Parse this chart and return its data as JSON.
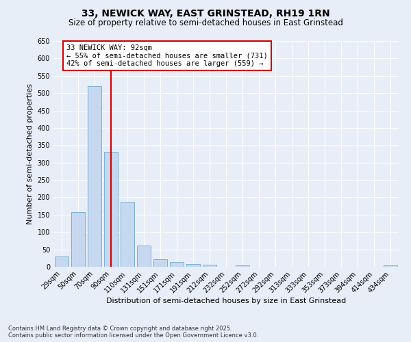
{
  "title": "33, NEWICK WAY, EAST GRINSTEAD, RH19 1RN",
  "subtitle": "Size of property relative to semi-detached houses in East Grinstead",
  "xlabel": "Distribution of semi-detached houses by size in East Grinstead",
  "ylabel": "Number of semi-detached properties",
  "categories": [
    "29sqm",
    "50sqm",
    "70sqm",
    "90sqm",
    "110sqm",
    "131sqm",
    "151sqm",
    "171sqm",
    "191sqm",
    "212sqm",
    "232sqm",
    "252sqm",
    "272sqm",
    "292sqm",
    "313sqm",
    "333sqm",
    "353sqm",
    "373sqm",
    "394sqm",
    "414sqm",
    "434sqm"
  ],
  "values": [
    30,
    158,
    520,
    330,
    187,
    62,
    22,
    13,
    8,
    5,
    0,
    4,
    0,
    0,
    0,
    0,
    0,
    0,
    0,
    0,
    4
  ],
  "bar_color": "#c5d8ef",
  "bar_edge_color": "#7aafd4",
  "vline_x_index": 3,
  "vline_color": "#cc0000",
  "annotation_line1": "33 NEWICK WAY: 92sqm",
  "annotation_line2": "← 55% of semi-detached houses are smaller (731)",
  "annotation_line3": "42% of semi-detached houses are larger (559) →",
  "annotation_box_color": "#ffffff",
  "annotation_box_edge_color": "#cc0000",
  "ylim": [
    0,
    650
  ],
  "yticks": [
    0,
    50,
    100,
    150,
    200,
    250,
    300,
    350,
    400,
    450,
    500,
    550,
    600,
    650
  ],
  "background_color": "#e8eef7",
  "grid_color": "#ffffff",
  "footer_line1": "Contains HM Land Registry data © Crown copyright and database right 2025.",
  "footer_line2": "Contains public sector information licensed under the Open Government Licence v3.0.",
  "title_fontsize": 10,
  "subtitle_fontsize": 8.5,
  "xlabel_fontsize": 8,
  "ylabel_fontsize": 8,
  "tick_fontsize": 7,
  "annotation_fontsize": 7.5,
  "footer_fontsize": 6
}
